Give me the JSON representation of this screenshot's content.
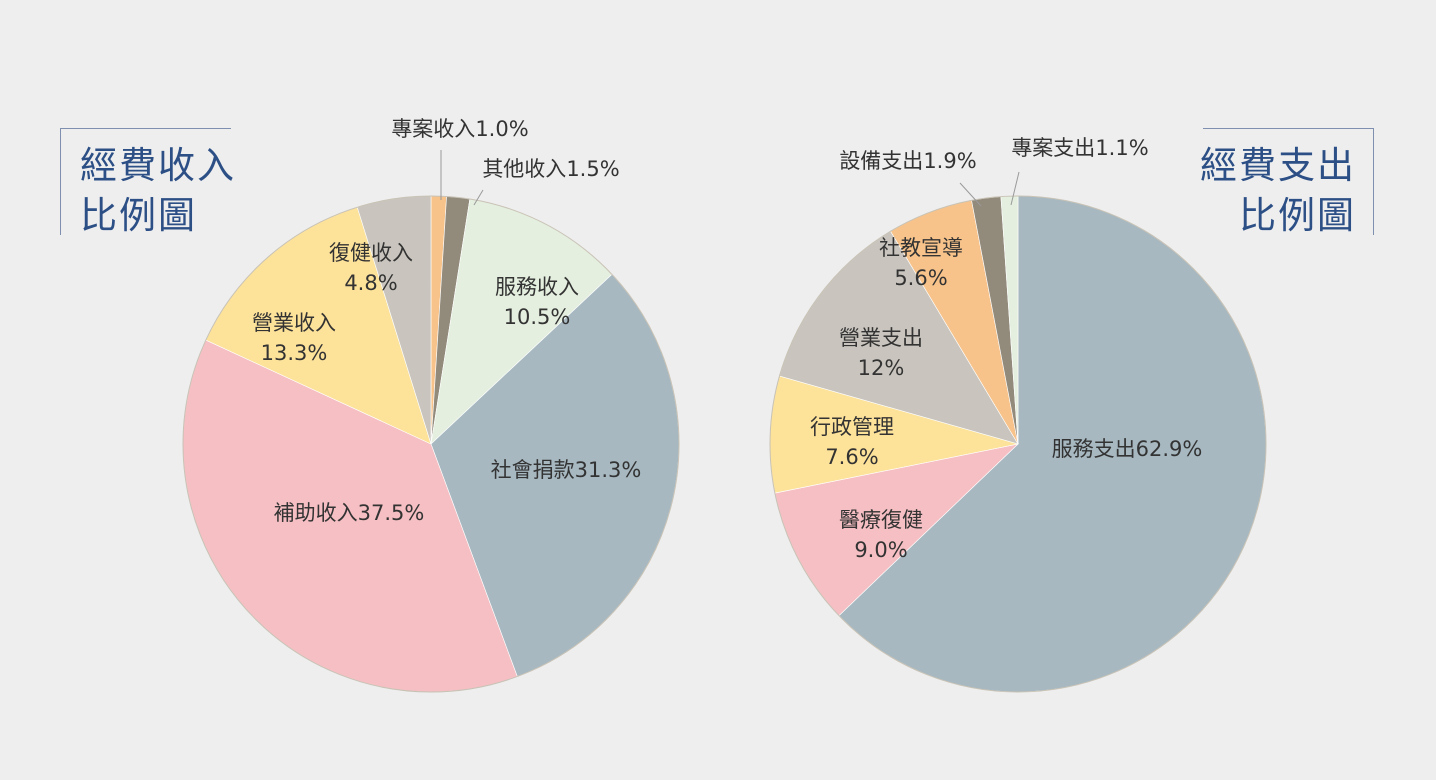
{
  "titles": {
    "income_line1": "經費收入",
    "income_line2": "比例圖",
    "expense_line1": "經費支出",
    "expense_line2": "比例圖"
  },
  "chart_data": [
    {
      "type": "pie",
      "title": "經費收入比例圖",
      "slices": [
        {
          "label": "專案收入",
          "value": 1.0,
          "value_text": "1.0%",
          "color": "#f7c38a"
        },
        {
          "label": "其他收入",
          "value": 1.5,
          "value_text": "1.5%",
          "color": "#928a7b"
        },
        {
          "label": "服務收入",
          "value": 10.5,
          "value_text": "10.5%",
          "color": "#e4efdf"
        },
        {
          "label": "社會捐款",
          "value": 31.3,
          "value_text": "31.3%",
          "color": "#a7b8c1"
        },
        {
          "label": "補助收入",
          "value": 37.5,
          "value_text": "37.5%",
          "color": "#f5bfc3"
        },
        {
          "label": "營業收入",
          "value": 13.3,
          "value_text": "13.3%",
          "color": "#fde29a"
        },
        {
          "label": "復健收入",
          "value": 4.8,
          "value_text": "4.8%",
          "color": "#c9c5be"
        }
      ]
    },
    {
      "type": "pie",
      "title": "經費支出比例圖",
      "slices": [
        {
          "label": "服務支出",
          "value": 62.9,
          "value_text": "62.9%",
          "color": "#a7b8c1"
        },
        {
          "label": "醫療復健",
          "value": 9.0,
          "value_text": "9.0%",
          "color": "#f5bfc3"
        },
        {
          "label": "行政管理",
          "value": 7.6,
          "value_text": "7.6%",
          "color": "#fde29a"
        },
        {
          "label": "營業支出",
          "value": 12,
          "value_text": "12%",
          "color": "#c9c5be"
        },
        {
          "label": "社教宣導",
          "value": 5.6,
          "value_text": "5.6%",
          "color": "#f7c38a"
        },
        {
          "label": "設備支出",
          "value": 1.9,
          "value_text": "1.9%",
          "color": "#928a7b"
        },
        {
          "label": "專案支出",
          "value": 1.1,
          "value_text": "1.1%",
          "color": "#e4efdf"
        }
      ]
    }
  ]
}
